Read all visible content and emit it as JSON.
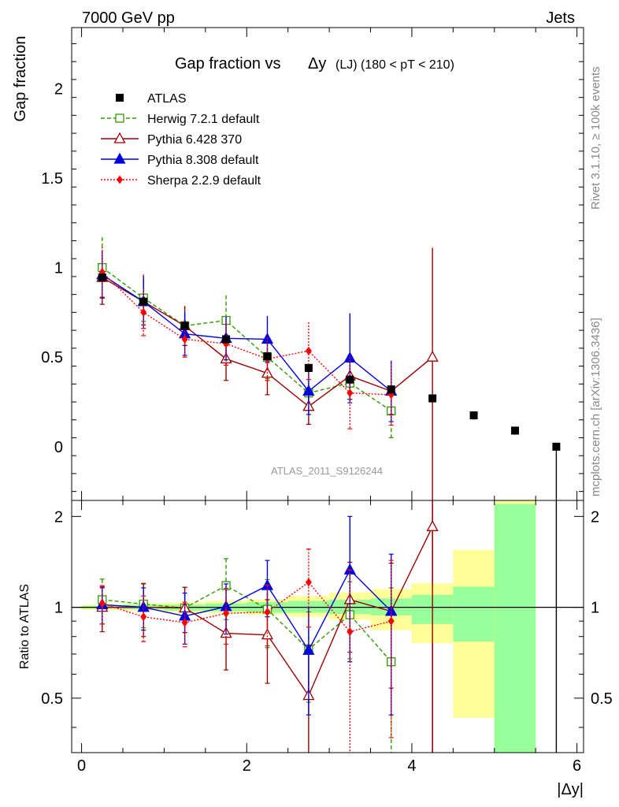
{
  "header": {
    "left": "7000 GeV pp",
    "right": "Jets"
  },
  "side": {
    "rivet": "Rivet 3.1.10, ≥ 100k events",
    "mcplots": "mcplots.cern.ch [arXiv:1306.3436]"
  },
  "chart_data": [
    {
      "type": "scatter",
      "title": "Gap fraction vs",
      "title_symbol": "Δy",
      "title_tail": "(LJ) (180 < pT < 210)",
      "ylabel": "Gap fraction",
      "xlabel": "|Δy|",
      "watermark": "ATLAS_2011_S9126244",
      "xlim": [
        -0.12,
        6.08
      ],
      "ylim": [
        -0.3,
        2.34
      ],
      "x_ticks": [
        0,
        2,
        4,
        6
      ],
      "y_ticks": [
        0,
        0.5,
        1,
        1.5,
        2
      ],
      "y_tick_labels": [
        "0",
        "0.5",
        "1",
        "1.5",
        "2"
      ],
      "legend_position": "top-left",
      "series": [
        {
          "name": "ATLAS",
          "color": "#000000",
          "marker": "square-filled",
          "line": "none",
          "x": [
            0.25,
            0.75,
            1.25,
            1.75,
            2.25,
            2.75,
            3.25,
            3.75,
            4.25,
            4.75,
            5.25,
            5.75
          ],
          "y": [
            0.945,
            0.81,
            0.675,
            0.6,
            0.505,
            0.44,
            0.375,
            0.32,
            0.27,
            0.175,
            0.09,
            0.0
          ],
          "err_up": [
            0.02,
            0.02,
            0.02,
            0.02,
            0.02,
            0.02,
            0.02,
            0.02,
            0.02,
            0.02,
            0.02,
            0.02
          ],
          "err_dn": [
            0.02,
            0.02,
            0.02,
            0.02,
            0.02,
            0.02,
            0.02,
            0.02,
            0.02,
            0.02,
            0.02,
            0.02
          ]
        },
        {
          "name": "Herwig 7.2.1 default",
          "color": "#339900",
          "marker": "square-open",
          "line": "dashed",
          "x": [
            0.25,
            0.75,
            1.25,
            1.75,
            2.25,
            2.75,
            3.25,
            3.75
          ],
          "y": [
            1.0,
            0.83,
            0.675,
            0.705,
            0.5,
            0.3,
            0.355,
            0.2
          ],
          "err_up": [
            0.17,
            0.13,
            0.11,
            0.14,
            0.12,
            0.09,
            0.09,
            0.15
          ],
          "err_dn": [
            0.17,
            0.13,
            0.11,
            0.14,
            0.12,
            0.09,
            0.09,
            0.15
          ]
        },
        {
          "name": "Pythia 6.428 370",
          "color": "#990000",
          "marker": "triangle-open",
          "line": "solid",
          "x": [
            0.25,
            0.75,
            1.25,
            1.75,
            2.25,
            2.75,
            3.25,
            3.75,
            4.25
          ],
          "y": [
            0.945,
            0.81,
            0.675,
            0.49,
            0.41,
            0.225,
            0.395,
            0.31,
            0.5
          ],
          "err_up": [
            0.15,
            0.15,
            0.11,
            0.12,
            0.12,
            0.1,
            0.13,
            0.13,
            0.61
          ],
          "err_dn": [
            0.15,
            0.15,
            0.11,
            0.12,
            0.12,
            0.1,
            0.13,
            0.13,
            0.61
          ]
        },
        {
          "name": "Pythia 8.308 default",
          "color": "#0000dd",
          "marker": "triangle-filled",
          "line": "solid",
          "x": [
            0.25,
            0.75,
            1.25,
            1.75,
            2.25,
            2.75,
            3.25,
            3.75
          ],
          "y": [
            0.96,
            0.81,
            0.63,
            0.605,
            0.6,
            0.31,
            0.495,
            0.31
          ],
          "err_up": [
            0.13,
            0.13,
            0.12,
            0.12,
            0.13,
            0.13,
            0.25,
            0.17
          ],
          "err_dn": [
            0.13,
            0.13,
            0.12,
            0.12,
            0.13,
            0.13,
            0.25,
            0.17
          ]
        },
        {
          "name": "Sherpa 2.2.9 default",
          "color": "#ff0000",
          "marker": "diamond-filled",
          "line": "dotted",
          "x": [
            0.25,
            0.75,
            1.25,
            1.75,
            2.25,
            2.75,
            3.25,
            3.75
          ],
          "y": [
            0.975,
            0.75,
            0.6,
            0.575,
            0.49,
            0.535,
            0.3,
            0.29
          ],
          "err_up": [
            0.14,
            0.13,
            0.1,
            0.12,
            0.12,
            0.16,
            0.2,
            0.17
          ],
          "err_dn": [
            0.14,
            0.13,
            0.1,
            0.12,
            0.12,
            0.16,
            0.2,
            0.17
          ]
        }
      ]
    },
    {
      "type": "scatter",
      "ylabel": "Ratio to ATLAS",
      "xlabel": "|Δy|",
      "xlim": [
        -0.12,
        6.08
      ],
      "ylim": [
        0.33,
        2.26
      ],
      "x_ticks": [
        0,
        2,
        4,
        6
      ],
      "y_ticks": [
        0.5,
        1,
        2
      ],
      "y_tick_labels": [
        "0.5",
        "1",
        "2"
      ],
      "reference_line": 1,
      "bands": {
        "x_low": [
          0.0,
          0.5,
          1.0,
          1.5,
          2.0,
          2.5,
          3.0,
          3.5,
          4.0,
          4.5,
          5.0
        ],
        "x_high": [
          0.5,
          1.0,
          1.5,
          2.0,
          2.5,
          3.0,
          3.5,
          4.0,
          4.5,
          5.0,
          5.5
        ],
        "inner": [
          [
            0.99,
            1.01
          ],
          [
            0.985,
            1.02
          ],
          [
            0.975,
            1.02
          ],
          [
            0.97,
            1.03
          ],
          [
            0.96,
            1.04
          ],
          [
            0.96,
            1.05
          ],
          [
            0.95,
            1.06
          ],
          [
            0.94,
            1.07
          ],
          [
            0.88,
            1.1
          ],
          [
            0.77,
            1.17
          ],
          [
            0.33,
            2.2
          ]
        ],
        "outer": [
          [
            0.98,
            1.02
          ],
          [
            0.975,
            1.03
          ],
          [
            0.96,
            1.035
          ],
          [
            0.955,
            1.05
          ],
          [
            0.945,
            1.06
          ],
          [
            0.93,
            1.09
          ],
          [
            0.91,
            1.12
          ],
          [
            0.84,
            1.15
          ],
          [
            0.76,
            1.2
          ],
          [
            0.43,
            1.55
          ],
          [
            0.33,
            2.26
          ]
        ],
        "inner_color": "#99ff99",
        "outer_color": "#ffff99"
      },
      "series": [
        {
          "name": "Herwig 7.2.1 default",
          "color": "#339900",
          "marker": "square-open",
          "line": "dashed",
          "x": [
            0.25,
            0.75,
            1.25,
            1.75,
            2.25,
            2.75,
            3.25,
            3.75
          ],
          "y": [
            1.06,
            1.025,
            0.995,
            1.18,
            0.985,
            0.725,
            0.945,
            0.66
          ],
          "err_up": [
            0.18,
            0.17,
            0.17,
            0.27,
            0.25,
            0.24,
            0.27,
            0.5
          ],
          "err_dn": [
            0.18,
            0.17,
            0.17,
            0.27,
            0.25,
            0.24,
            0.27,
            0.45
          ]
        },
        {
          "name": "Pythia 6.428 370",
          "color": "#990000",
          "marker": "triangle-open",
          "line": "solid",
          "x": [
            0.25,
            0.75,
            1.25,
            1.75,
            2.25,
            2.75,
            3.25,
            3.75,
            4.25
          ],
          "y": [
            1.0,
            1.0,
            0.995,
            0.82,
            0.81,
            0.51,
            1.06,
            0.97,
            1.85
          ],
          "err_up": [
            0.17,
            0.2,
            0.17,
            0.2,
            0.25,
            0.24,
            0.35,
            0.43,
            0.45
          ],
          "err_dn": [
            0.17,
            0.2,
            0.17,
            0.2,
            0.25,
            0.24,
            0.35,
            0.43,
            1.52
          ]
        },
        {
          "name": "Pythia 8.308 default",
          "color": "#0000dd",
          "marker": "triangle-filled",
          "line": "solid",
          "x": [
            0.25,
            0.75,
            1.25,
            1.75,
            2.25,
            2.75,
            3.25,
            3.75
          ],
          "y": [
            1.02,
            1.0,
            0.935,
            1.005,
            1.18,
            0.72,
            1.33,
            0.97
          ],
          "err_up": [
            0.14,
            0.16,
            0.18,
            0.19,
            0.25,
            0.28,
            0.67,
            0.53
          ],
          "err_dn": [
            0.14,
            0.16,
            0.18,
            0.19,
            0.25,
            0.28,
            0.67,
            0.53
          ]
        },
        {
          "name": "Sherpa 2.2.9 default",
          "color": "#ff0000",
          "marker": "diamond-filled",
          "line": "dotted",
          "x": [
            0.25,
            0.75,
            1.25,
            1.75,
            2.25,
            2.75,
            3.25,
            3.75
          ],
          "y": [
            1.03,
            0.93,
            0.89,
            0.955,
            0.965,
            1.21,
            0.83,
            0.9
          ],
          "err_up": [
            0.15,
            0.16,
            0.15,
            0.2,
            0.22,
            0.35,
            0.5,
            0.53
          ],
          "err_dn": [
            0.15,
            0.16,
            0.15,
            0.2,
            0.22,
            0.35,
            0.5,
            0.53
          ]
        }
      ]
    }
  ]
}
